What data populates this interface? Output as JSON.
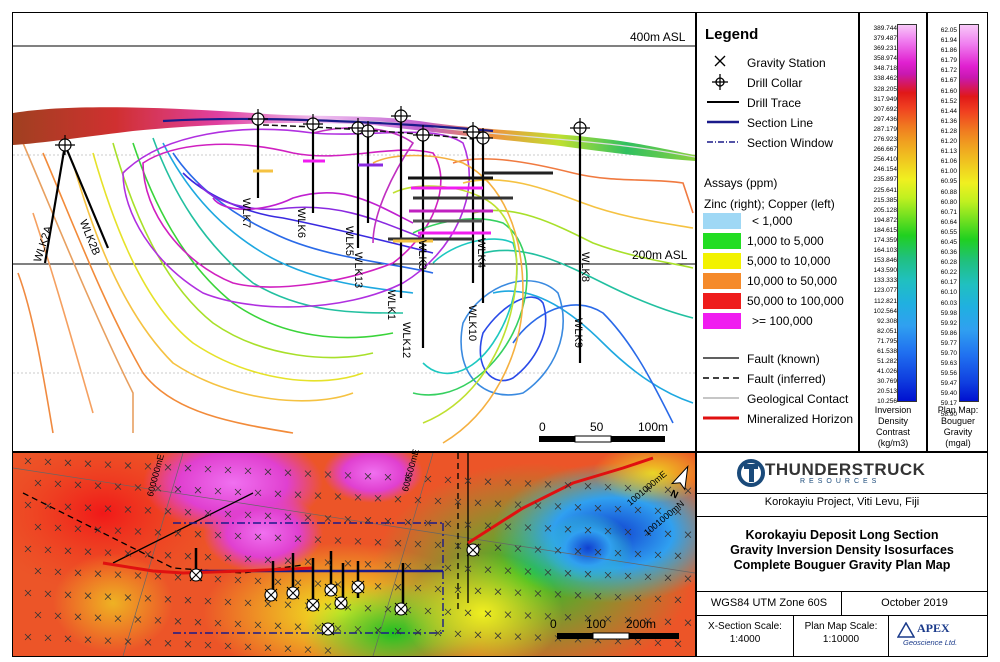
{
  "section": {
    "elevation_labels": [
      "400m ASL",
      "200m ASL"
    ],
    "drillholes": [
      "WLK2A",
      "WLK2B",
      "WLK7",
      "WLK6",
      "WLK5",
      "WLK13",
      "WLK1",
      "WLK12",
      "WLK3",
      "WLK4",
      "WLK10",
      "WLK8",
      "WLK9"
    ],
    "scale": {
      "ticks": [
        "0",
        "50",
        "100m"
      ]
    }
  },
  "legend": {
    "title": "Legend",
    "symbols": [
      {
        "icon": "cross-icon",
        "label": "Gravity Station"
      },
      {
        "icon": "drill-collar-icon",
        "label": "Drill Collar"
      },
      {
        "icon": "drill-trace-line",
        "label": "Drill Trace"
      },
      {
        "icon": "section-line",
        "label": "Section Line"
      },
      {
        "icon": "section-window-line",
        "label": "Section Window"
      }
    ],
    "assays_title": "Assays (ppm)",
    "assays_subtitle": "Zinc (right); Copper (left)",
    "assay_classes": [
      {
        "label": "< 1,000",
        "color": "#9fd8f5"
      },
      {
        "label": "1,000 to 5,000",
        "color": "#22dd22"
      },
      {
        "label": "5,000 to 10,000",
        "color": "#f2f200"
      },
      {
        "label": "10,000 to 50,000",
        "color": "#f58a2a"
      },
      {
        "label": "50,000 to 100,000",
        "color": "#ee1c1c"
      },
      {
        "label": ">= 100,000",
        "color": "#f01cf0"
      }
    ],
    "lines": [
      {
        "icon": "fault-known-line",
        "label": "Fault (known)"
      },
      {
        "icon": "fault-inferred-line",
        "label": "Fault (inferred)"
      },
      {
        "icon": "geological-contact-line",
        "label": "Geological Contact"
      },
      {
        "icon": "mineralized-horizon-line",
        "label": "Mineralized Horizon"
      }
    ]
  },
  "density_bar": {
    "values": [
      "389.744",
      "379.487",
      "369.231",
      "358.974",
      "348.718",
      "338.462",
      "328.205",
      "317.949",
      "307.692",
      "297.436",
      "287.179",
      "276.923",
      "266.667",
      "256.410",
      "246.154",
      "235.897",
      "225.641",
      "215.385",
      "205.128",
      "194.872",
      "184.615",
      "174.359",
      "164.103",
      "153.846",
      "143.590",
      "133.333",
      "123.077",
      "112.821",
      "102.564",
      "92.308",
      "82.051",
      "71.795",
      "61.538",
      "51.282",
      "41.026",
      "30.769",
      "20.513",
      "10.256"
    ],
    "caption": [
      "Inversion",
      "Density",
      "Contrast",
      "(kg/m3)"
    ]
  },
  "gravity_bar": {
    "values": [
      "62.05",
      "61.94",
      "61.86",
      "61.79",
      "61.72",
      "61.67",
      "61.60",
      "61.52",
      "61.44",
      "61.36",
      "61.28",
      "61.20",
      "61.13",
      "61.06",
      "61.00",
      "60.95",
      "60.88",
      "60.80",
      "60.71",
      "60.64",
      "60.55",
      "60.45",
      "60.36",
      "60.28",
      "60.22",
      "60.17",
      "60.10",
      "60.03",
      "59.98",
      "59.92",
      "59.86",
      "59.77",
      "59.70",
      "59.63",
      "59.56",
      "59.47",
      "59.40",
      "59.17",
      "58.90"
    ],
    "caption": [
      "Plan Map:",
      "Bouguer",
      "Gravity",
      "(mgal)"
    ]
  },
  "plan": {
    "grid_labels": [
      "600000mE",
      "600500mE",
      "1001000mE",
      "1001000mN"
    ],
    "scale": {
      "ticks": [
        "0",
        "100",
        "200m"
      ]
    }
  },
  "titleblock": {
    "company": "THUNDERSTRUCK",
    "company_sub": "RESOURCES",
    "project": "Korokayiu Project, Viti Levu, Fiji",
    "title_lines": [
      "Korokayiu Deposit Long Section",
      "Gravity Inversion Density Isosurfaces",
      "Complete Bouguer Gravity Plan Map"
    ],
    "datum": "WGS84 UTM Zone 60S",
    "date": "October 2019",
    "xsection_scale_label": "X-Section Scale:",
    "xsection_scale": "1:4000",
    "plan_scale_label": "Plan Map Scale:",
    "plan_scale": "1:10000",
    "apex": "APEX",
    "apex_sub": "Geoscience Ltd."
  }
}
